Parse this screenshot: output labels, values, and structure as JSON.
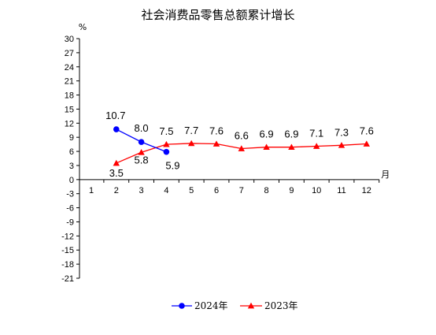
{
  "chart_data": {
    "type": "line",
    "title": "社会消费品零售总额累计增长",
    "ylabel": "%",
    "xlabel": "月",
    "ylim": [
      -21,
      30
    ],
    "yticks": [
      30,
      27,
      24,
      21,
      18,
      15,
      12,
      9,
      6,
      3,
      0,
      -3,
      -6,
      -9,
      -12,
      -15,
      -18,
      -21
    ],
    "x": [
      1,
      2,
      3,
      4,
      5,
      6,
      7,
      8,
      9,
      10,
      11,
      12
    ],
    "legend_position": "bottom",
    "series": [
      {
        "name": "2024年",
        "color": "#0000ff",
        "marker": "circle",
        "x": [
          2,
          3,
          4
        ],
        "values": [
          10.7,
          8.0,
          5.9
        ],
        "labels": [
          "10.7",
          "8.0",
          "5.9"
        ]
      },
      {
        "name": "2023年",
        "color": "#ff0000",
        "marker": "triangle",
        "x": [
          2,
          3,
          4,
          5,
          6,
          7,
          8,
          9,
          10,
          11,
          12
        ],
        "values": [
          3.5,
          5.8,
          7.5,
          7.7,
          7.6,
          6.6,
          6.9,
          6.9,
          7.1,
          7.3,
          7.6
        ],
        "labels": [
          "3.5",
          "5.8",
          "7.5",
          "7.7",
          "7.6",
          "6.6",
          "6.9",
          "6.9",
          "7.1",
          "7.3",
          "7.6"
        ]
      }
    ]
  }
}
